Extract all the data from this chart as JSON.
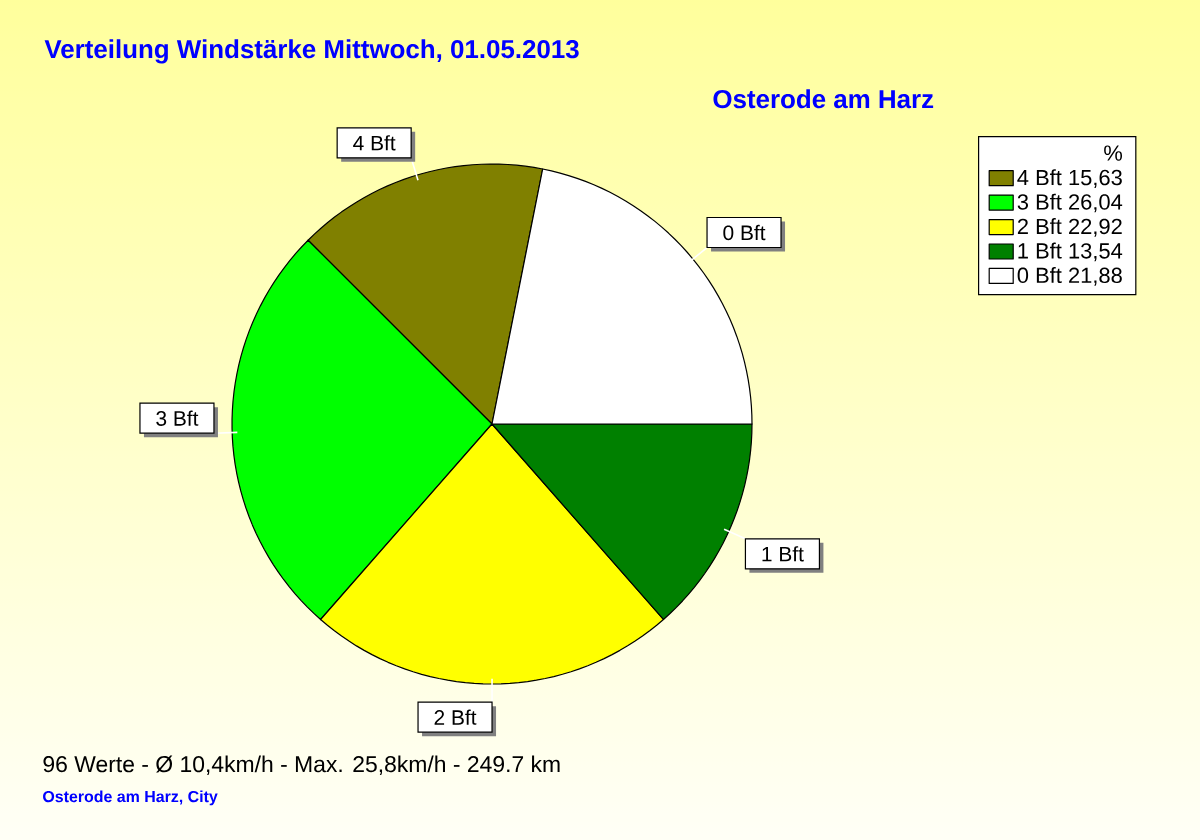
{
  "chart_data": {
    "type": "pie",
    "title": "Verteilung Windstärke  Mittwoch, 01.05.2013",
    "subtitle": "Osterode am Harz",
    "categories": [
      "4 Bft",
      "3 Bft",
      "2 Bft",
      "1 Bft",
      "0 Bft"
    ],
    "values": [
      15.63,
      26.04,
      22.92,
      13.54,
      21.88
    ],
    "value_labels": [
      "15,63",
      "26,04",
      "22,92",
      "13,54",
      "21,88"
    ],
    "colors": [
      "#808000",
      "#00ff00",
      "#ffff00",
      "#008000",
      "#ffffff"
    ],
    "legend_title": "%",
    "legend": "top right",
    "annotations": [
      "96 Werte   -   Ø 10,4km/h  -  Max. 25,8km/h   -   249.7 km",
      "Osterode am Harz, City"
    ]
  }
}
